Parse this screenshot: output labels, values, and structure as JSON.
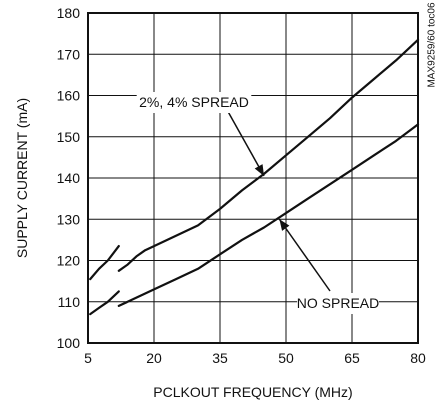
{
  "chart_data": {
    "type": "line",
    "title": "",
    "xlabel": "PCLKOUT FREQUENCY (MHz)",
    "ylabel": "SUPPLY CURRENT (mA)",
    "xlim": [
      5,
      80
    ],
    "ylim": [
      100,
      180
    ],
    "x_ticks": [
      5,
      20,
      35,
      50,
      65,
      80
    ],
    "y_ticks": [
      100,
      110,
      120,
      130,
      140,
      150,
      160,
      170,
      180
    ],
    "x_tick_labels": [
      "5",
      "20",
      "35",
      "50",
      "65",
      "80"
    ],
    "y_tick_labels": [
      "100",
      "110",
      "120",
      "130",
      "140",
      "150",
      "160",
      "170",
      "180"
    ],
    "grid": true,
    "side_label": "MAX9259/60 toc06",
    "series": [
      {
        "name": "2%, 4% SPREAD",
        "segments": [
          {
            "x": [
              5.5,
              7.5,
              9.5,
              12.0
            ],
            "y": [
              115.5,
              118.0,
              120.0,
              123.5
            ]
          },
          {
            "x": [
              12.0,
              14.0,
              16.0,
              18.0,
              20.0,
              25.0,
              30.0,
              35.0,
              40.0,
              45.0,
              50.0,
              55.0,
              60.0,
              65.0,
              70.0,
              75.0,
              80.0
            ],
            "y": [
              117.5,
              119.0,
              121.0,
              122.5,
              123.5,
              126.0,
              128.5,
              132.5,
              137.0,
              141.0,
              145.5,
              150.0,
              154.5,
              159.5,
              164.0,
              168.5,
              173.5
            ]
          }
        ]
      },
      {
        "name": "NO SPREAD",
        "segments": [
          {
            "x": [
              5.5,
              7.5,
              9.5,
              12.0
            ],
            "y": [
              107.0,
              108.5,
              110.0,
              112.5
            ]
          },
          {
            "x": [
              12.0,
              14.0,
              16.0,
              18.0,
              20.0,
              25.0,
              30.0,
              35.0,
              40.0,
              45.0,
              50.0,
              55.0,
              60.0,
              65.0,
              70.0,
              75.0,
              80.0
            ],
            "y": [
              109.0,
              110.0,
              111.0,
              112.0,
              113.0,
              115.5,
              118.0,
              121.5,
              125.0,
              128.0,
              131.5,
              135.0,
              138.5,
              142.0,
              145.5,
              149.0,
              153.0
            ]
          }
        ]
      }
    ],
    "annotations": [
      {
        "text": "2%, 4% SPREAD",
        "series": 0,
        "point": [
          45.0,
          140.5
        ]
      },
      {
        "text": "NO SPREAD",
        "series": 1,
        "point": [
          48.5,
          130.0
        ]
      }
    ]
  }
}
